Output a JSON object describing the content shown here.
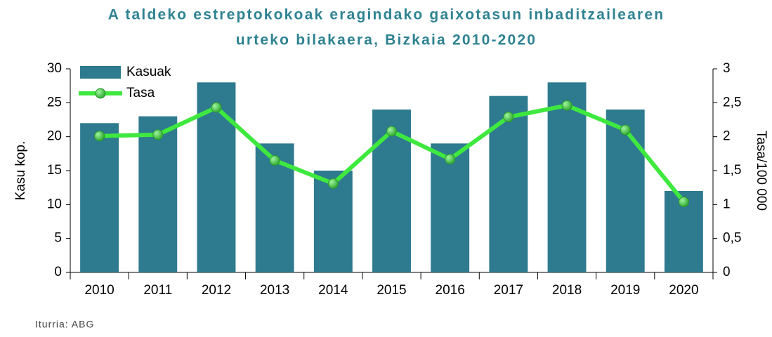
{
  "chart_data": {
    "type": "bar_line",
    "title": [
      "A taldeko estreptokokoak eragindako gaixotasun inbaditzailearen",
      "urteko bilakaera, Bizkaia 2010-2020"
    ],
    "y_label": "Kasu kop.",
    "y2_label": "Tasa/100 000",
    "source": "Iturria: ABG",
    "categories": [
      "2010",
      "2011",
      "2012",
      "2013",
      "2014",
      "2015",
      "2016",
      "2017",
      "2018",
      "2019",
      "2020"
    ],
    "series": [
      {
        "name": "Kasuak",
        "type": "bar",
        "color": "#2e7a8f",
        "values": [
          22,
          23,
          28,
          19,
          15,
          24,
          19,
          26,
          28,
          24,
          12
        ]
      },
      {
        "name": "Tasa",
        "type": "line",
        "axis": "y2",
        "color": "#3fe83f",
        "values": [
          2.01,
          2.03,
          2.43,
          1.65,
          1.31,
          2.08,
          1.67,
          2.29,
          2.46,
          2.1,
          1.04
        ]
      }
    ],
    "ylim": [
      0,
      30
    ],
    "yticks": [
      0,
      5,
      10,
      15,
      20,
      25,
      30
    ],
    "y2lim": [
      0,
      3
    ],
    "y2ticks": [
      0,
      {
        "value": 0.5,
        "label": "0,5"
      },
      1,
      {
        "value": 1.5,
        "label": "1,5"
      },
      2,
      {
        "value": 2.5,
        "label": "2,5"
      },
      3
    ],
    "legend": "top-left"
  }
}
